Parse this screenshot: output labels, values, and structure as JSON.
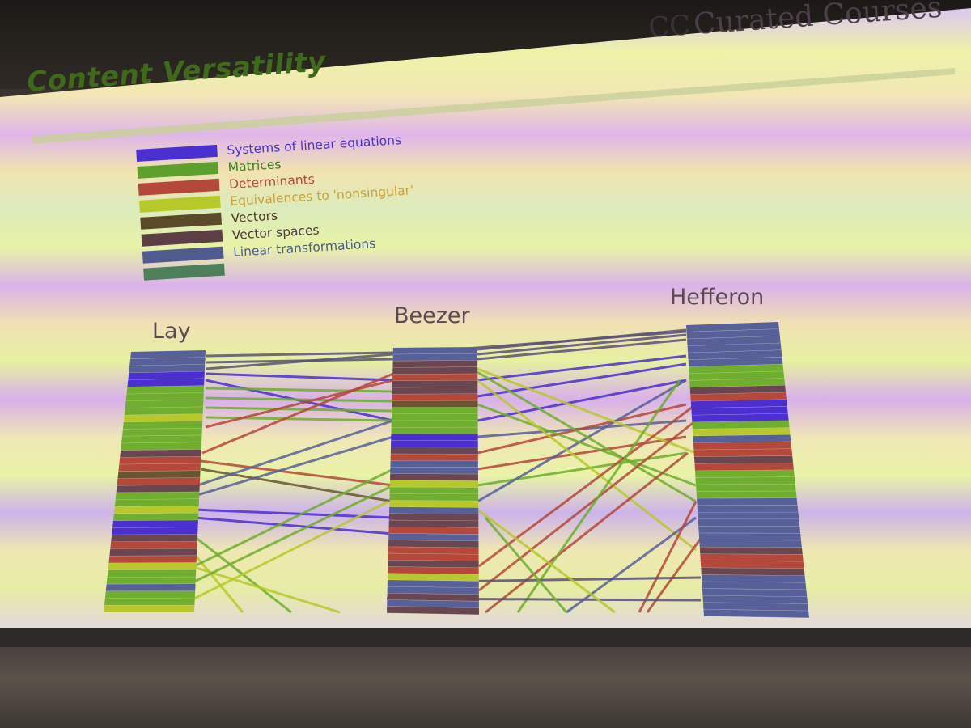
{
  "header": {
    "title": "Content Versatility",
    "brand": "Curated Courses",
    "brand_logo": "CC"
  },
  "legend": [
    {
      "label": "Systems of linear equations",
      "color": "#4b2fd1",
      "text_color": "#4b2fd1"
    },
    {
      "label": "Matrices",
      "color": "#5e9f2e",
      "text_color": "#3f7f1a"
    },
    {
      "label": "Determinants",
      "color": "#b4483a",
      "text_color": "#b4483a"
    },
    {
      "label": "Equivalences to 'nonsingular'",
      "color": "#b7c92a",
      "text_color": "#c8a23a"
    },
    {
      "label": "Vectors",
      "color": "#5a4a28",
      "text_color": "#4a3a20"
    },
    {
      "label": "Vector spaces",
      "color": "#5c3f45",
      "text_color": "#4a3a40"
    },
    {
      "label": "Linear transformations",
      "color": "#4f5a8f",
      "text_color": "#4a5a8a"
    }
  ],
  "extra_legend_swatch": "#4e7f5a",
  "columns": {
    "lay": "Lay",
    "beezer": "Beezer",
    "hefferon": "Hefferon"
  },
  "palette": {
    "systems": "#4b2fd1",
    "matrices": "#6fae2e",
    "determinants": "#b4483a",
    "nonsingular": "#b7c92a",
    "vectors": "#6a5530",
    "vectorspaces": "#6a4650",
    "lintrans": "#58609a",
    "connector": "#5a5275"
  }
}
